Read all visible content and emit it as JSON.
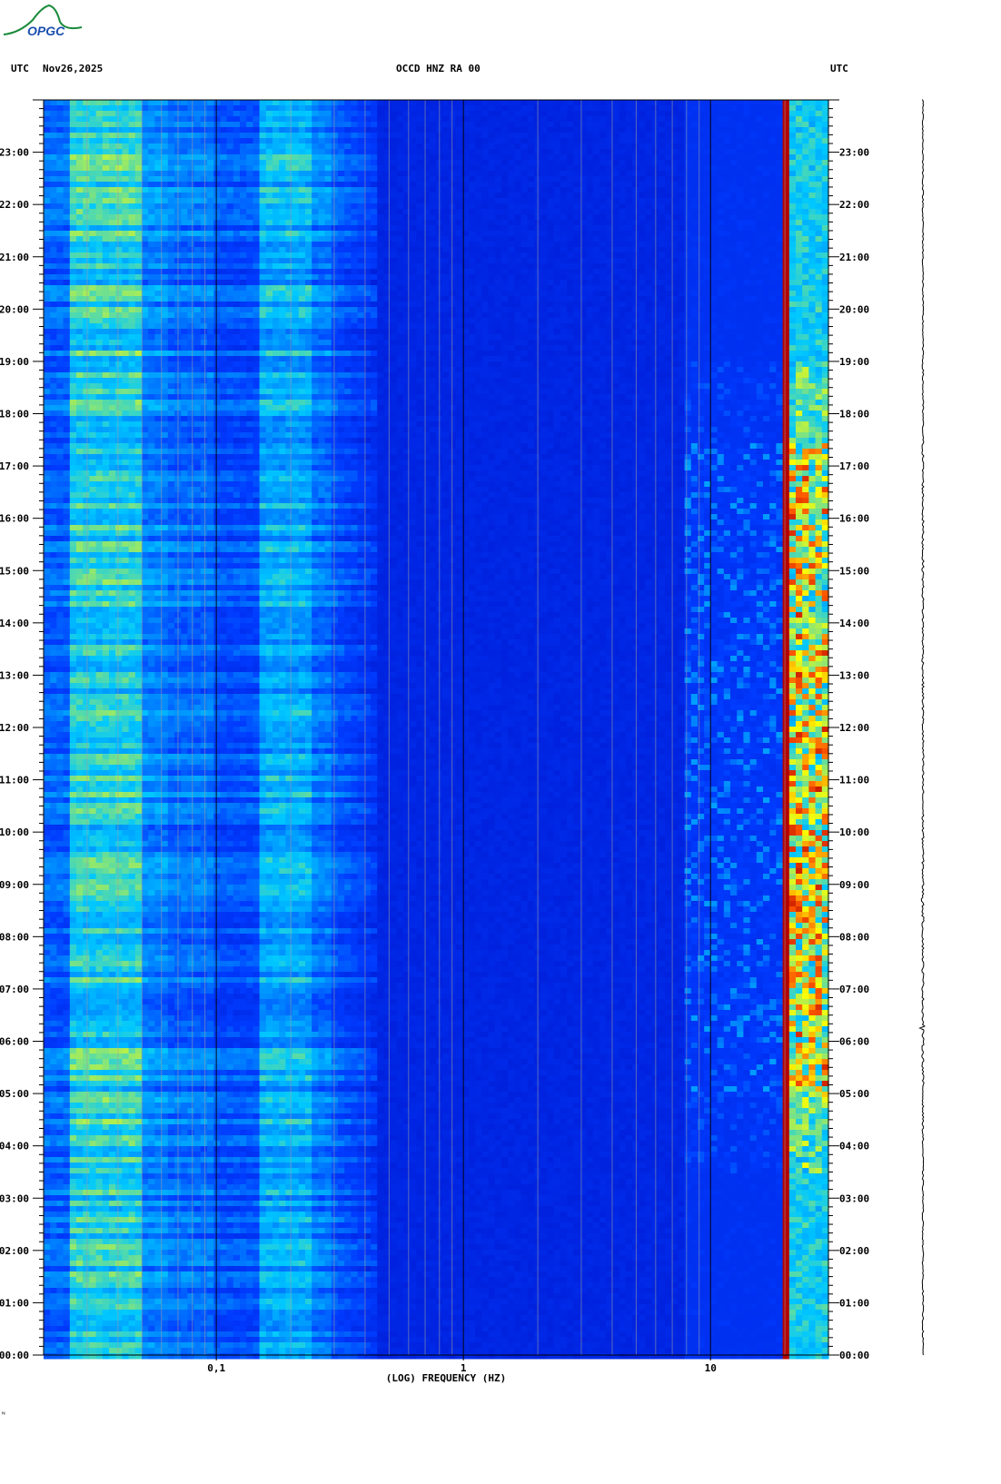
{
  "header": {
    "left_tz": "UTC",
    "date": "Nov26,2025",
    "station": "OCCD HNZ RA 00",
    "right_tz": "UTC"
  },
  "logo": {
    "text": "OPGC"
  },
  "footer_mark": "ᴺ",
  "chart_data": {
    "type": "heatmap",
    "title": "OCCD HNZ RA 00",
    "xlabel": "(LOG) FREQUENCY (HZ)",
    "ylabel": "",
    "x_scale": "log",
    "xlim": [
      0.02,
      30
    ],
    "x_tick_labels": [
      {
        "value": 0.1,
        "label": "0,1"
      },
      {
        "value": 1,
        "label": "1"
      },
      {
        "value": 10,
        "label": "10"
      }
    ],
    "ylim_hours": [
      0,
      24
    ],
    "y_tick_labels": [
      "00:00",
      "01:00",
      "02:00",
      "03:00",
      "04:00",
      "05:00",
      "06:00",
      "07:00",
      "08:00",
      "09:00",
      "10:00",
      "11:00",
      "12:00",
      "13:00",
      "14:00",
      "15:00",
      "16:00",
      "17:00",
      "18:00",
      "19:00",
      "20:00",
      "21:00",
      "22:00",
      "23:00"
    ],
    "colors": {
      "low": "#0000b4",
      "mid": "#00c8ff",
      "high": "#ffff00",
      "peak": "#b40000"
    },
    "spectral_features": [
      {
        "freq_range_hz": [
          0.022,
          0.05
        ],
        "level": "mid-high",
        "note": "broad microseism band"
      },
      {
        "freq_range_hz": [
          0.16,
          0.24
        ],
        "level": "mid"
      },
      {
        "freq_range_hz": [
          20,
          20.4
        ],
        "level": "peak",
        "note": "constant spectral line"
      },
      {
        "freq_range_hz": [
          21,
          29
        ],
        "level": "mid-high",
        "note": "high-frequency noise, strongest 05:00-17:00"
      }
    ]
  }
}
